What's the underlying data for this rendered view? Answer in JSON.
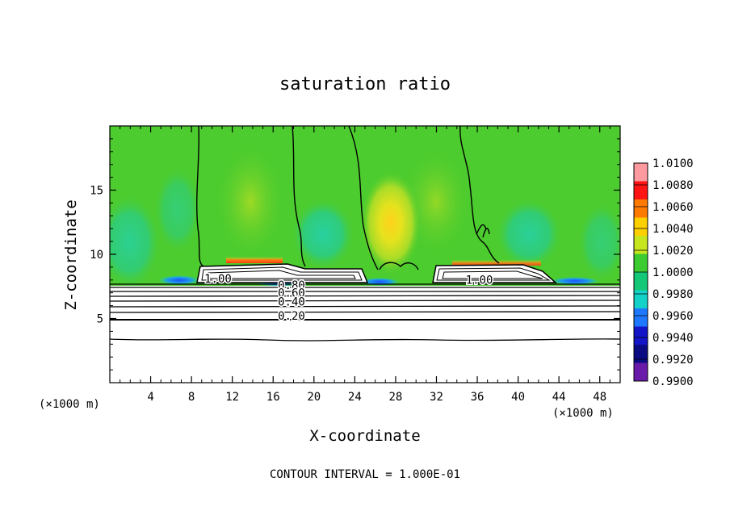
{
  "chart_data": {
    "type": "heatmap",
    "title": "saturation ratio",
    "xlabel": "X-coordinate",
    "ylabel": "Z-coordinate",
    "x_unit_left": "(×1000 m)",
    "x_unit_right": "(×1000 m)",
    "xlim": [
      0,
      50
    ],
    "ylim": [
      0,
      20
    ],
    "x_ticks": [
      4,
      8,
      12,
      16,
      20,
      24,
      28,
      32,
      36,
      40,
      44,
      48
    ],
    "x_tick_labels": [
      "4",
      "8",
      "12",
      "16",
      "20",
      "24",
      "28",
      "32",
      "36",
      "40",
      "44",
      "48"
    ],
    "y_ticks": [
      5,
      10,
      15
    ],
    "y_tick_labels": [
      "5",
      "10",
      "15"
    ],
    "colorbar": {
      "min": 0.99,
      "max": 1.01,
      "labels": [
        "1.0100",
        "1.0080",
        "1.0060",
        "1.0040",
        "1.0020",
        "1.0000",
        "0.9980",
        "0.9960",
        "0.9940",
        "0.9920",
        "0.9900"
      ],
      "colors": [
        "#ff9aa0",
        "#ff1414",
        "#ff7a00",
        "#ffd000",
        "#c8e61e",
        "#3ccc32",
        "#14c878",
        "#14d2c8",
        "#1e78ff",
        "#1414c8",
        "#0a0a82",
        "#6a1aa8"
      ]
    },
    "contour_labels": [
      {
        "text": "1.00",
        "x": 10.6,
        "y": 7.8
      },
      {
        "text": "1.00",
        "x": 36.2,
        "y": 7.7
      },
      {
        "text": "0.80",
        "x": 17.8,
        "y": 7.3
      },
      {
        "text": "0.60",
        "x": 17.8,
        "y": 6.7
      },
      {
        "text": "0.40",
        "x": 17.8,
        "y": 6.0
      },
      {
        "text": "0.20",
        "x": 17.8,
        "y": 4.9
      }
    ],
    "contour_interval_text": "CONTOUR INTERVAL = 1.000E-01"
  }
}
